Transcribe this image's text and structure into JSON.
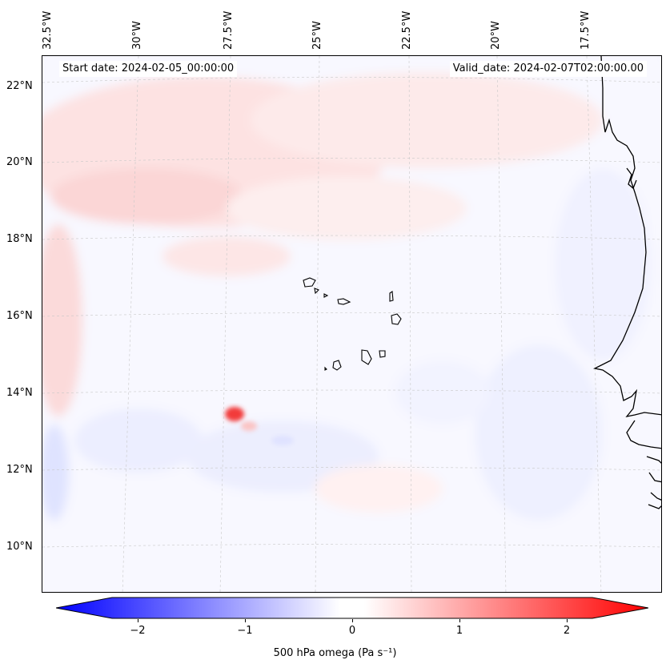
{
  "header": {
    "start_date": "Start date: 2024-02-05_00:00:00",
    "valid_date": "Valid_date: 2024-02-07T02:00:00.00"
  },
  "map": {
    "lon_labels": [
      "32.5°W",
      "30°W",
      "27.5°W",
      "25°W",
      "22.5°W",
      "20°W",
      "17.5°W"
    ],
    "lat_labels": [
      "22°N",
      "20°N",
      "18°N",
      "16°N",
      "14°N",
      "12°N",
      "10°N"
    ],
    "features": {
      "coastline": "West Africa coastline",
      "islands": "Cape Verde islands",
      "anomaly": "localized positive omega near 13.5°N 27.5°W"
    }
  },
  "colorbar": {
    "ticks": [
      "−2",
      "−1",
      "0",
      "1",
      "2"
    ],
    "label": "500 hPa omega (Pa s⁻¹)",
    "colors": {
      "min": "#0000ff",
      "mid": "#ffffff",
      "max": "#ff0000"
    }
  }
}
